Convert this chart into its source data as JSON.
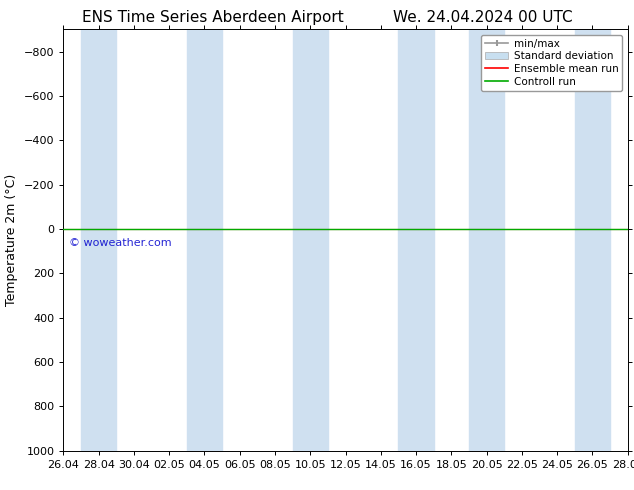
{
  "title_left": "ENS Time Series Aberdeen Airport",
  "title_right": "We. 24.04.2024 00 UTC",
  "ylabel": "Temperature 2m (°C)",
  "watermark": "© woweather.com",
  "ylim_top": -900,
  "ylim_bottom": 1000,
  "yticks": [
    -800,
    -600,
    -400,
    -200,
    0,
    200,
    400,
    600,
    800,
    1000
  ],
  "x_ticks_labels": [
    "26.04",
    "28.04",
    "30.04",
    "02.05",
    "04.05",
    "06.05",
    "08.05",
    "10.05",
    "12.05",
    "14.05",
    "16.05",
    "18.05",
    "20.05",
    "22.05",
    "24.05",
    "26.05",
    "28.05"
  ],
  "x_ticks_pos": [
    0,
    2,
    4,
    6,
    8,
    10,
    12,
    14,
    16,
    18,
    20,
    22,
    24,
    26,
    28,
    30,
    32
  ],
  "x_lim": [
    0,
    32
  ],
  "shaded_bands": [
    [
      1,
      3
    ],
    [
      7,
      9
    ],
    [
      13,
      15
    ],
    [
      19,
      21
    ],
    [
      23,
      25
    ],
    [
      29,
      31
    ]
  ],
  "shaded_color": "#cfe0f0",
  "control_run_y": 0,
  "control_run_color": "#00aa00",
  "ensemble_mean_color": "#ff0000",
  "background_color": "#ffffff",
  "plot_bg_color": "#ffffff",
  "minmax_color": "#999999",
  "std_dev_color": "#c8dff0",
  "legend_labels": [
    "min/max",
    "Standard deviation",
    "Ensemble mean run",
    "Controll run"
  ],
  "legend_colors": [
    "#999999",
    "#c8dff0",
    "#ff0000",
    "#00aa00"
  ],
  "title_fontsize": 11,
  "tick_fontsize": 8,
  "label_fontsize": 9,
  "watermark_color": "#0000cc"
}
